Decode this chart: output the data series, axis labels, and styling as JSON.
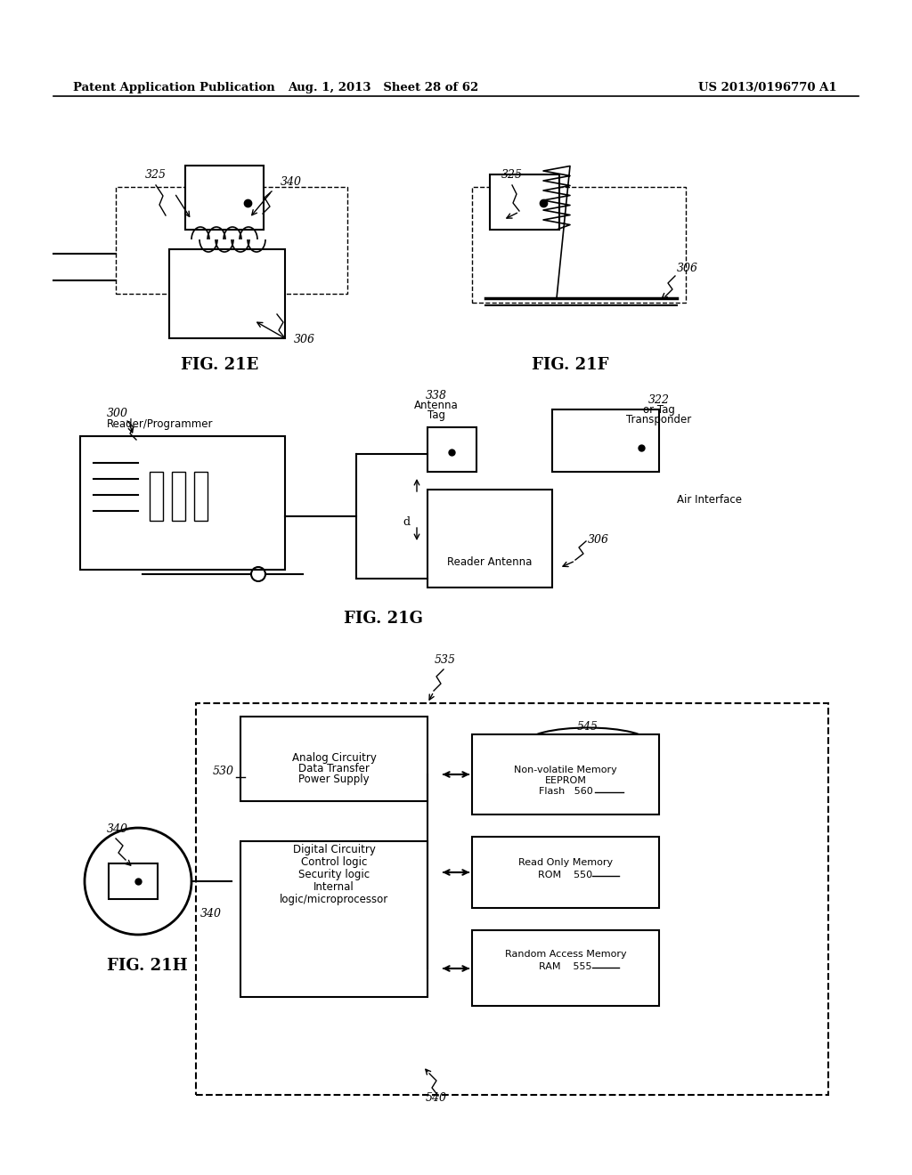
{
  "bg_color": "#ffffff",
  "header_left": "Patent Application Publication",
  "header_mid": "Aug. 1, 2013   Sheet 28 of 62",
  "header_right": "US 2013/0196770 A1",
  "fig21e_label": "FIG. 21E",
  "fig21f_label": "FIG. 21F",
  "fig21g_label": "FIG. 21G",
  "fig21h_label": "FIG. 21H"
}
